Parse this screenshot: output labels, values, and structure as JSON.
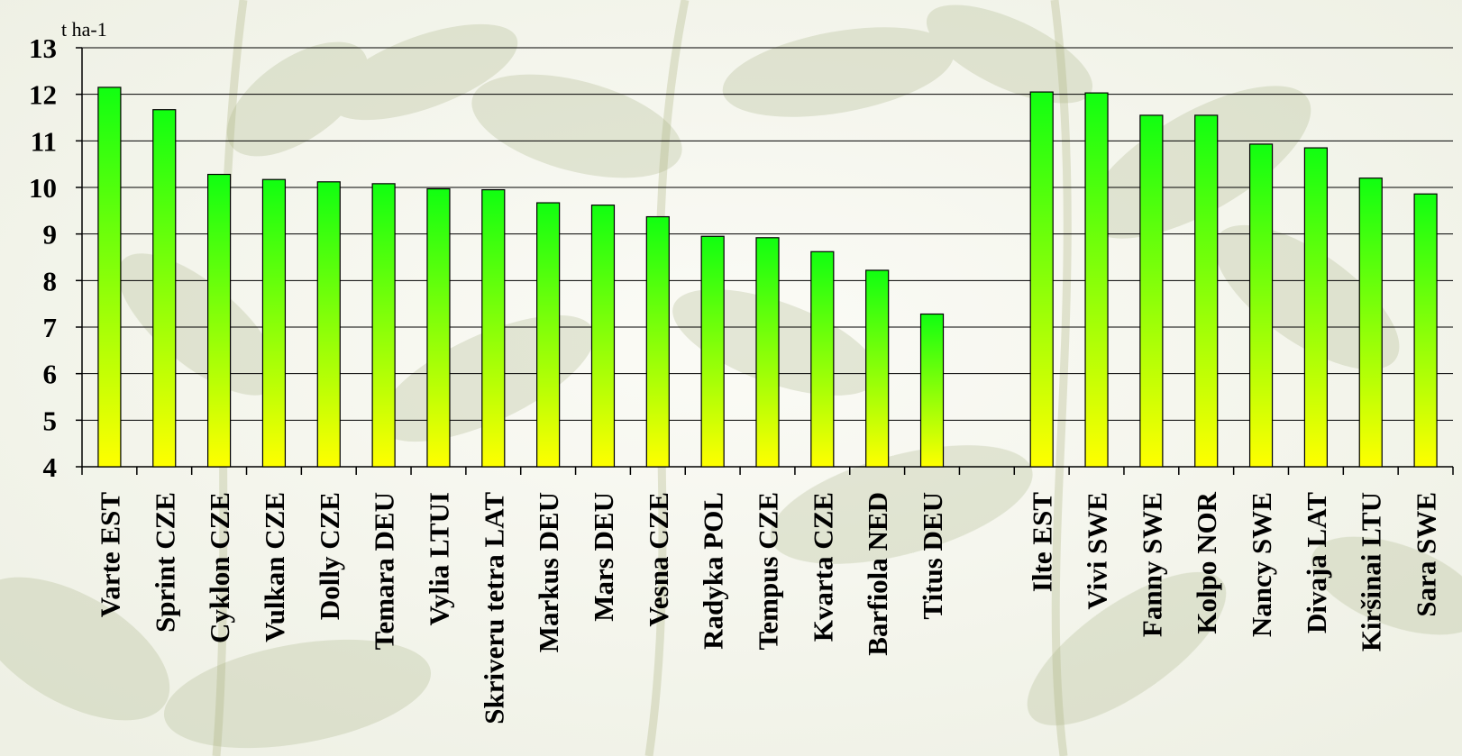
{
  "chart_data": {
    "type": "bar",
    "title": "",
    "xlabel": "",
    "ylabel": "t ha-1",
    "ylim": [
      4,
      13
    ],
    "yticks": [
      4,
      5,
      6,
      7,
      8,
      9,
      10,
      11,
      12,
      13
    ],
    "grid": true,
    "legend": "none",
    "bar_gradient": {
      "top": "#11ff11",
      "bottom": "#ffff00"
    },
    "categories": [
      "Varte EST",
      "Sprint CZE",
      "Cyklon CZE",
      "Vulkan CZE",
      "Dolly CZE",
      "Temara DEU",
      "Vylia LTUI",
      "Skriveru tetra LAT",
      "Markus DEU",
      "Mars DEU",
      "Vesna CZE",
      "Radyka POL",
      "Tempus CZE",
      "Kvarta CZE",
      "Barfiola NED",
      "Titus DEU",
      "",
      "Ilte EST",
      "Vivi SWE",
      "Fanny SWE",
      "Kolpo NOR",
      "Nancy SWE",
      "Divaja LAT",
      "Kiršinai LTU",
      "Sara SWE"
    ],
    "values": [
      12.15,
      11.67,
      10.28,
      10.17,
      10.12,
      10.08,
      9.97,
      9.95,
      9.67,
      9.62,
      9.37,
      8.95,
      8.92,
      8.62,
      8.22,
      7.28,
      null,
      12.05,
      12.03,
      11.55,
      11.55,
      10.93,
      10.85,
      10.2,
      9.86
    ]
  }
}
